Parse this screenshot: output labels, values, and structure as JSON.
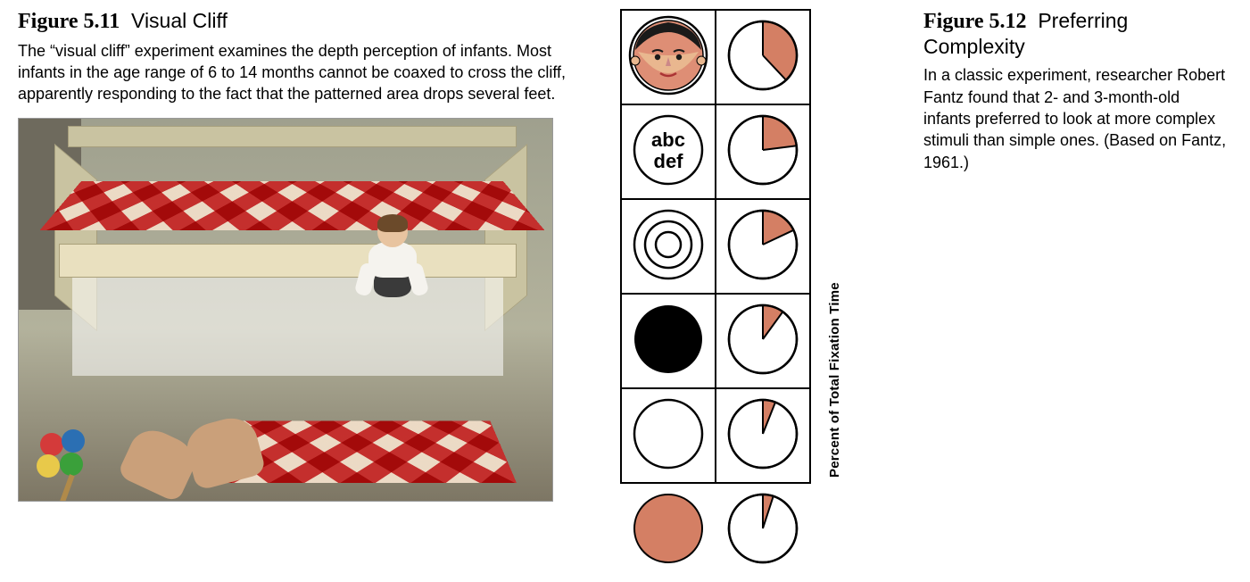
{
  "left": {
    "fig_num": "Figure 5.11",
    "fig_title": "Visual Cliff",
    "caption": "The “visual cliff” experiment examines the depth perception of infants. Most infants in the age range of 6 to 14 months cannot be coaxed to cross the cliff, apparently responding to the fact that the patterned area drops several feet."
  },
  "right": {
    "fig_num": "Figure 5.12",
    "fig_title": "Preferring Complexity",
    "caption": "In a classic experiment, researcher Robert Fantz found that 2- and 3-month-old infants preferred to look at more complex stimuli than simple ones. (Based on Fantz, 1961.)"
  },
  "chart": {
    "y_axis_label": "Percent of Total Fixation Time",
    "text_stimulus_line1": "abc",
    "text_stimulus_line2": "def",
    "colors": {
      "salmon": "#d47f64",
      "salmon_face": "#de8e75",
      "black": "#000000",
      "white": "#ffffff",
      "stroke": "#000000",
      "face_hair": "#1a1a1a",
      "face_skin": "#e9b78f"
    },
    "circle_radius": 40,
    "rows": [
      {
        "stimulus": "face",
        "percent": 38
      },
      {
        "stimulus": "text",
        "percent": 23
      },
      {
        "stimulus": "bullseye",
        "percent": 18
      },
      {
        "stimulus": "black",
        "percent": 10
      },
      {
        "stimulus": "white",
        "percent": 6
      },
      {
        "stimulus": "salmon",
        "percent": 5
      }
    ]
  },
  "photo": {
    "toy_colors": [
      "#d43a3a",
      "#2b6fb3",
      "#e8c94a",
      "#3aa03a"
    ]
  }
}
